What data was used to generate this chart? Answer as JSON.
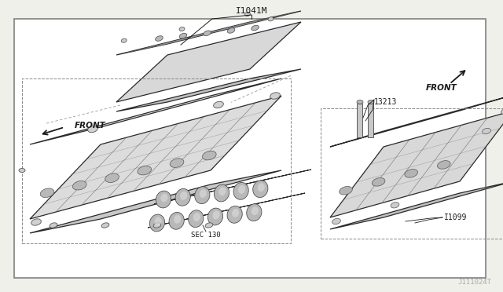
{
  "bg_color": "#f0f0eb",
  "box_bg": "#ffffff",
  "border_color": "#808080",
  "text_color": "#1a1a1a",
  "line_color": "#2a2a2a",
  "part_fill": "#e8e8e8",
  "part_edge": "#2a2a2a",
  "fig_width": 6.4,
  "fig_height": 3.72,
  "dpi": 100,
  "title_label": "I1041M",
  "watermark": "J111024T",
  "label_13213": "13213",
  "label_11099": "I1099",
  "label_sec130": "SEC 130",
  "label_front": "FRONT"
}
